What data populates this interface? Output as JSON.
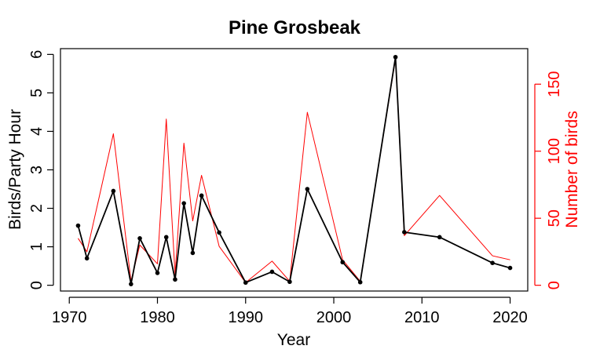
{
  "chart_data": {
    "type": "line",
    "title": "Pine Grosbeak",
    "xlabel": "Year",
    "ylabel_left": "Birds/Party Hour",
    "ylabel_right": "Number of birds",
    "xlim": [
      1969,
      2022
    ],
    "ylim_left": [
      -0.15,
      6.15
    ],
    "ylim_right": [
      -4.3,
      176.5
    ],
    "x_ticks": [
      1970,
      1980,
      1990,
      2000,
      2010,
      2020
    ],
    "y_left_ticks": [
      0,
      1,
      2,
      3,
      4,
      5,
      6
    ],
    "y_right_ticks": [
      0,
      50,
      100,
      150
    ],
    "grid": false,
    "colors": {
      "left_series": "#000000",
      "right_series": "#ff0000",
      "right_axis": "#ff0000"
    },
    "series": [
      {
        "axis": "left",
        "points": [
          [
            1971,
            1.55
          ],
          [
            1972,
            0.7
          ],
          [
            1975,
            2.45
          ],
          [
            1977,
            0.03
          ],
          [
            1978,
            1.22
          ],
          [
            1980,
            0.32
          ],
          [
            1981,
            1.25
          ],
          [
            1982,
            0.15
          ],
          [
            1983,
            2.13
          ],
          [
            1984,
            0.84
          ],
          [
            1985,
            2.33
          ],
          [
            1987,
            1.37
          ],
          [
            1990,
            0.07
          ],
          [
            1993,
            0.35
          ],
          [
            1995,
            0.09
          ],
          [
            1997,
            2.5
          ],
          [
            2001,
            0.6
          ],
          [
            2003,
            0.08
          ],
          [
            2007,
            5.93
          ],
          [
            2008,
            1.38
          ],
          [
            2012,
            1.25
          ],
          [
            2018,
            0.58
          ],
          [
            2020,
            0.45
          ]
        ]
      },
      {
        "axis": "right",
        "points": [
          [
            1971,
            35
          ],
          [
            1972,
            25
          ],
          [
            1975,
            113
          ],
          [
            1977,
            3
          ],
          [
            1978,
            30
          ],
          [
            1980,
            16
          ],
          [
            1981,
            124
          ],
          [
            1982,
            8
          ],
          [
            1983,
            106
          ],
          [
            1984,
            48
          ],
          [
            1985,
            82
          ],
          [
            1987,
            29
          ],
          [
            1990,
            2
          ],
          [
            1993,
            18
          ],
          [
            1995,
            3
          ],
          [
            1997,
            129
          ],
          [
            2001,
            19
          ],
          [
            2003,
            3
          ],
          [
            2007,
            169
          ],
          [
            2008,
            37
          ],
          [
            2012,
            67
          ],
          [
            2018,
            22
          ],
          [
            2020,
            19
          ]
        ]
      }
    ]
  }
}
